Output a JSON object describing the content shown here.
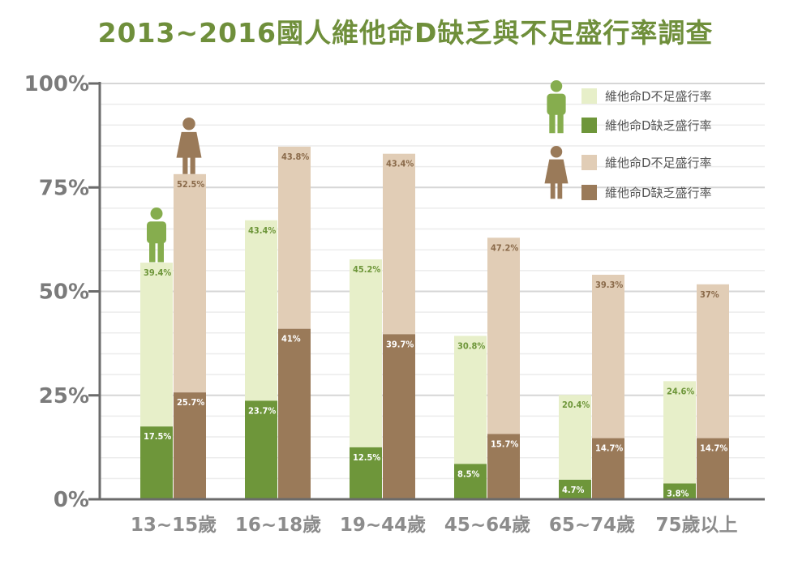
{
  "title": "2013~2016國人維他命D缺乏與不足盛行率調查",
  "chart_data": {
    "type": "bar",
    "title": "2013~2016國人維他命D缺乏與不足盛行率調查",
    "categories": [
      "13~15歲",
      "16~18歲",
      "19~44歲",
      "45~64歲",
      "65~74歲",
      "75歲以上"
    ],
    "ylim": [
      0,
      100
    ],
    "yticks": [
      0,
      25,
      50,
      75,
      100
    ],
    "ytick_labels": [
      "0%",
      "25%",
      "50%",
      "75%",
      "100%"
    ],
    "grid": true,
    "legend_position": "top-right",
    "groups": [
      {
        "name": "male",
        "icon": "male-person-icon",
        "series": [
          {
            "name": "維他命D缺乏盛行率",
            "color": "#6e963a",
            "values": [
              17.5,
              23.7,
              12.5,
              8.5,
              4.7,
              3.8
            ],
            "labels": [
              "17.5%",
              "23.7%",
              "12.5%",
              "8.5%",
              "4.7%",
              "3.8%"
            ]
          },
          {
            "name": "維他命D不足盛行率",
            "color": "#e7efc9",
            "values": [
              39.4,
              43.4,
              45.2,
              30.8,
              20.4,
              24.6
            ],
            "labels": [
              "39.4%",
              "43.4%",
              "45.2%",
              "30.8%",
              "20.4%",
              "24.6%"
            ]
          }
        ]
      },
      {
        "name": "female",
        "icon": "female-person-icon",
        "series": [
          {
            "name": "維他命D缺乏盛行率",
            "color": "#9a7a59",
            "values": [
              25.7,
              41,
              39.7,
              15.7,
              14.7,
              14.7
            ],
            "labels": [
              "25.7%",
              "41%",
              "39.7%",
              "15.7%",
              "14.7%",
              "14.7%"
            ]
          },
          {
            "name": "維他命D不足盛行率",
            "color": "#e1cdb6",
            "values": [
              52.5,
              43.8,
              43.4,
              47.2,
              39.3,
              37
            ],
            "labels": [
              "52.5%",
              "43.8%",
              "43.4%",
              "47.2%",
              "39.3%",
              "37%"
            ]
          }
        ]
      }
    ],
    "legend": [
      {
        "label": "維他命D不足盛行率",
        "color": "#e7efc9",
        "group": "male"
      },
      {
        "label": "維他命D缺乏盛行率",
        "color": "#6e963a",
        "group": "male"
      },
      {
        "label": "維他命D不足盛行率",
        "color": "#e1cdb6",
        "group": "female"
      },
      {
        "label": "維他命D缺乏盛行率",
        "color": "#9a7a59",
        "group": "female"
      }
    ]
  },
  "colors": {
    "title": "#6f8f3b",
    "male_icon": "#86ad4e",
    "female_icon": "#9a7a59",
    "axis": "#6b6b6b",
    "grid": "#dcdcdc",
    "male_light_label": "#6e963a",
    "female_light_label": "#8a6a4a"
  }
}
